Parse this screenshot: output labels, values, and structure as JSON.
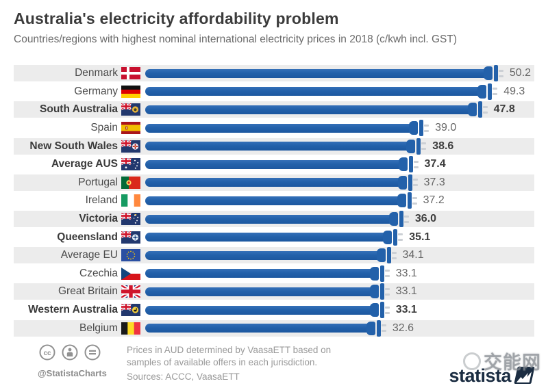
{
  "header": {
    "title": "Australia's electricity affordability problem",
    "subtitle": "Countries/regions with highest nominal international electricity prices in 2018 (c/kwh incl. GST)"
  },
  "chart_data": {
    "type": "bar",
    "orientation": "horizontal",
    "title": "Australia's electricity affordability problem",
    "subtitle": "Countries/regions with highest nominal international electricity prices in 2018 (c/kwh incl. GST)",
    "unit": "c/kwh incl. GST",
    "xlim": [
      0,
      52
    ],
    "grid": false,
    "legend": "none",
    "bar_color": "#2361aa",
    "row_band_color": "#ececec",
    "categories": [
      "Denmark",
      "Germany",
      "South Australia",
      "Spain",
      "New South Wales",
      "Average AUS",
      "Portugal",
      "Ireland",
      "Victoria",
      "Queensland",
      "Average EU",
      "Czechia",
      "Great Britain",
      "Western Australia",
      "Belgium"
    ],
    "values": [
      50.2,
      49.3,
      47.8,
      39.0,
      38.6,
      37.4,
      37.3,
      37.2,
      36.0,
      35.1,
      34.1,
      33.1,
      33.1,
      33.1,
      32.6
    ],
    "value_labels": [
      "50.2",
      "49.3",
      "47.8",
      "39.0",
      "38.6",
      "37.4",
      "37.3",
      "37.2",
      "36.0",
      "35.1",
      "34.1",
      "33.1",
      "33.1",
      "33.1",
      "32.6"
    ],
    "flags": [
      "dk",
      "de",
      "sa",
      "es",
      "nsw",
      "aus",
      "pt",
      "ie",
      "vic",
      "qld",
      "eu",
      "cz",
      "gb",
      "wa",
      "be"
    ],
    "flag_names": [
      "denmark-flag",
      "germany-flag",
      "south-australia-flag",
      "spain-flag",
      "new-south-wales-flag",
      "australia-flag",
      "portugal-flag",
      "ireland-flag",
      "victoria-flag",
      "queensland-flag",
      "eu-flag",
      "czechia-flag",
      "great-britain-flag",
      "western-australia-flag",
      "belgium-flag"
    ],
    "bold": [
      false,
      false,
      true,
      false,
      true,
      true,
      false,
      false,
      true,
      true,
      false,
      false,
      false,
      true,
      false
    ]
  },
  "footer": {
    "license_icons": [
      "cc-icon",
      "attribution-person-icon",
      "no-derivatives-equal-icon"
    ],
    "handle": "@StatistaCharts",
    "note": "Prices in AUD determined by VaasaETT based on samples of available offers in each jurisdiction.",
    "sources": "Sources: ACCC, VaasaETT",
    "logo_text": "statista",
    "watermark_text": "交能网"
  }
}
